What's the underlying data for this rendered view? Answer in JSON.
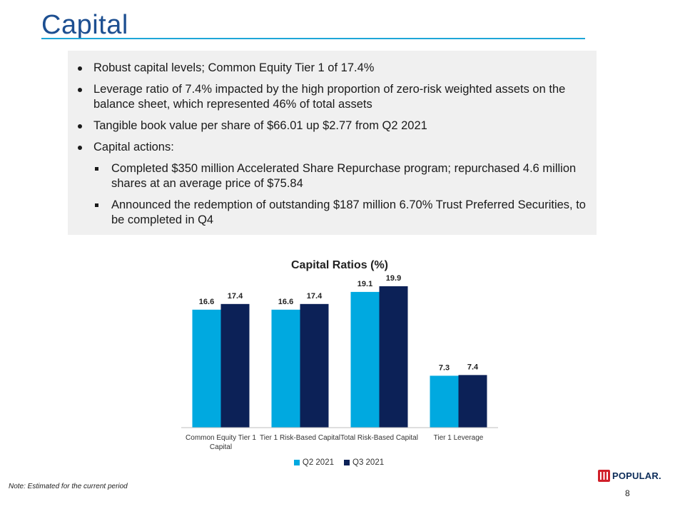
{
  "slide": {
    "title": "Capital",
    "note": "Note: Estimated for the current period",
    "page_number": "8",
    "logo_text": "POPULAR."
  },
  "bullets": [
    {
      "text": "Robust capital levels; Common Equity Tier 1 of 17.4%"
    },
    {
      "text": "Leverage ratio of 7.4% impacted by the high proportion of zero-risk weighted assets on the balance sheet, which represented 46% of total assets"
    },
    {
      "text": "Tangible book value per share of $66.01 up $2.77 from Q2 2021"
    },
    {
      "text": "Capital actions:"
    }
  ],
  "sub_bullets": [
    {
      "text": "Completed $350 million Accelerated Share Repurchase program; repurchased 4.6 million shares at an average price of $75.84"
    },
    {
      "text": "Announced the redemption of outstanding $187 million 6.70% Trust Preferred Securities, to be completed in Q4"
    }
  ],
  "colors": {
    "title": "#1d4f91",
    "rule": "#1ea6d8",
    "series_q2": "#00a9e0",
    "series_q3": "#0c2157"
  },
  "chart_data": {
    "type": "bar",
    "title": "Capital Ratios (%)",
    "categories": [
      [
        "Common Equity Tier 1",
        "Capital"
      ],
      [
        "Tier 1 Risk-Based Capital"
      ],
      [
        "Total Risk-Based Capital"
      ],
      [
        "Tier 1 Leverage"
      ]
    ],
    "series": [
      {
        "name": "Q2 2021",
        "values": [
          16.6,
          16.6,
          19.1,
          7.3
        ],
        "color": "#00a9e0"
      },
      {
        "name": "Q3 2021",
        "values": [
          17.4,
          17.4,
          19.9,
          7.4
        ],
        "color": "#0c2157"
      }
    ],
    "ylim": [
      0,
      21
    ],
    "grid": false,
    "legend": "bottom",
    "data_labels": true
  }
}
